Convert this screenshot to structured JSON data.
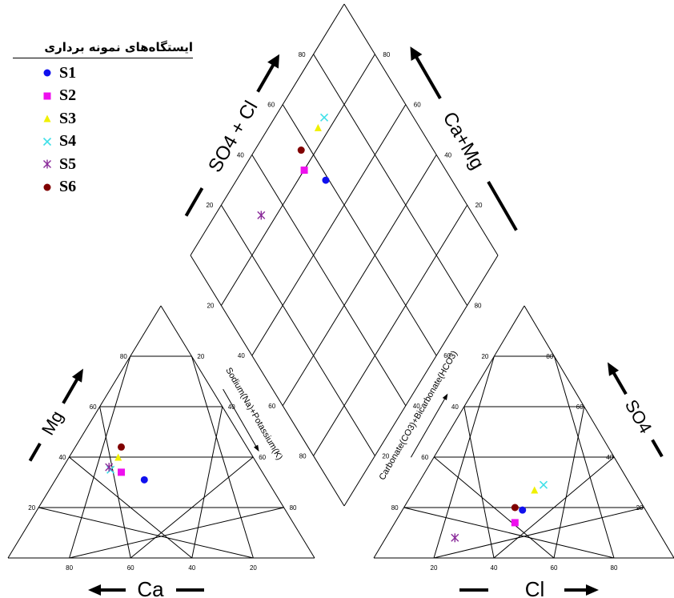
{
  "legend": {
    "title": "ایستگاه‌های نمونه برداری",
    "items": [
      {
        "label": "S1",
        "marker": "circle",
        "color": "#1010ee"
      },
      {
        "label": "S2",
        "marker": "square",
        "color": "#ee10ee"
      },
      {
        "label": "S3",
        "marker": "triangle",
        "color": "#f0f000"
      },
      {
        "label": "S4",
        "marker": "x",
        "color": "#40e0e8"
      },
      {
        "label": "S5",
        "marker": "asterisk",
        "color": "#8a2b9a"
      },
      {
        "label": "S6",
        "marker": "circle",
        "color": "#800000"
      }
    ]
  },
  "chart_data": {
    "type": "scatter",
    "subtype": "piper-diagram",
    "axis_titles": {
      "ca": "Ca",
      "mg": "Mg",
      "cl": "Cl",
      "so4": "SO4",
      "na_k": "Sodium(Na)+Potassium(K)",
      "co3_hco3": "Carbonate(CO3)+Bicarbonate(HCO3)",
      "so4_cl": "SO4 + Cl",
      "ca_mg": "Ca+Mg"
    },
    "tick_labels": [
      "20",
      "40",
      "60",
      "80"
    ],
    "grid": true,
    "legend_position": "top-left",
    "samples": [
      {
        "name": "S1",
        "cation": {
          "ca": 40,
          "mg": 31,
          "na_k": 29
        },
        "anion": {
          "cl": 40,
          "so4": 19,
          "hco3": 41
        }
      },
      {
        "name": "S2",
        "cation": {
          "ca": 46,
          "mg": 34,
          "na_k": 20
        },
        "anion": {
          "cl": 40,
          "so4": 14,
          "hco3": 46
        }
      },
      {
        "name": "S3",
        "cation": {
          "ca": 44,
          "mg": 40,
          "na_k": 16
        },
        "anion": {
          "cl": 40,
          "so4": 27,
          "hco3": 33
        }
      },
      {
        "name": "S4",
        "cation": {
          "ca": 49,
          "mg": 35,
          "na_k": 16
        },
        "anion": {
          "cl": 42,
          "so4": 29,
          "hco3": 29
        }
      },
      {
        "name": "S5",
        "cation": {
          "ca": 49,
          "mg": 36,
          "na_k": 15
        },
        "anion": {
          "cl": 23,
          "so4": 8,
          "hco3": 69
        }
      },
      {
        "name": "S6",
        "cation": {
          "ca": 41,
          "mg": 44,
          "na_k": 15
        },
        "anion": {
          "cl": 37,
          "so4": 20,
          "hco3": 43
        }
      }
    ]
  }
}
